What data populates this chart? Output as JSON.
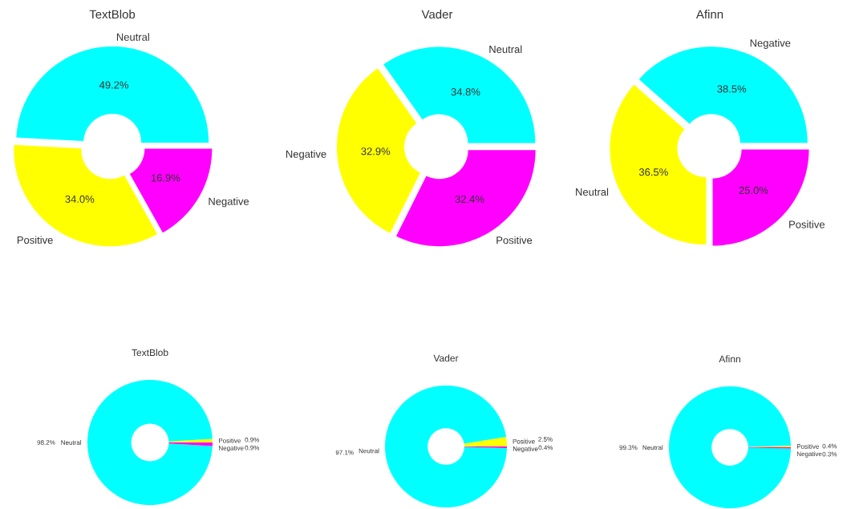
{
  "chart_data": [
    {
      "type": "donut",
      "title": "TextBlob",
      "categories": [
        "Neutral",
        "Positive",
        "Negative"
      ],
      "values": [
        49.2,
        34.0,
        16.9
      ],
      "colors": [
        "#00ffff",
        "#ffff00",
        "#ff00ff"
      ],
      "value_labels": [
        "49.2%",
        "34.0%",
        "16.9%"
      ]
    },
    {
      "type": "donut",
      "title": "Vader",
      "categories": [
        "Neutral",
        "Negative",
        "Positive"
      ],
      "values": [
        34.8,
        32.9,
        32.4
      ],
      "colors": [
        "#00ffff",
        "#ffff00",
        "#ff00ff"
      ],
      "value_labels": [
        "34.8%",
        "32.9%",
        "32.4%"
      ]
    },
    {
      "type": "donut",
      "title": "Afinn",
      "categories": [
        "Negative",
        "Neutral",
        "Positive"
      ],
      "values": [
        38.5,
        36.5,
        25.0
      ],
      "colors": [
        "#00ffff",
        "#ffff00",
        "#ff00ff"
      ],
      "value_labels": [
        "38.5%",
        "36.5%",
        "25.0%"
      ]
    },
    {
      "type": "donut",
      "title": "TextBlob",
      "categories": [
        "Positive",
        "Neutral",
        "Negative"
      ],
      "values": [
        0.9,
        98.2,
        0.9
      ],
      "colors": [
        "#ffff00",
        "#00ffff",
        "#ff00ff"
      ],
      "value_labels": [
        "0.9%",
        "98.2%",
        "0.9%"
      ]
    },
    {
      "type": "donut",
      "title": "Vader",
      "categories": [
        "Positive",
        "Neutral",
        "Negative"
      ],
      "values": [
        2.5,
        97.1,
        0.4
      ],
      "colors": [
        "#ffff00",
        "#00ffff",
        "#ff00ff"
      ],
      "value_labels": [
        "2.5%",
        "97.1%",
        "0.4%"
      ]
    },
    {
      "type": "donut",
      "title": "Afinn",
      "categories": [
        "Positive",
        "Neutral",
        "Negative"
      ],
      "values": [
        0.4,
        99.3,
        0.3
      ],
      "colors": [
        "#ffff00",
        "#00ffff",
        "#ff00ff"
      ],
      "value_labels": [
        "0.4%",
        "99.3%",
        "0.3%"
      ]
    }
  ]
}
